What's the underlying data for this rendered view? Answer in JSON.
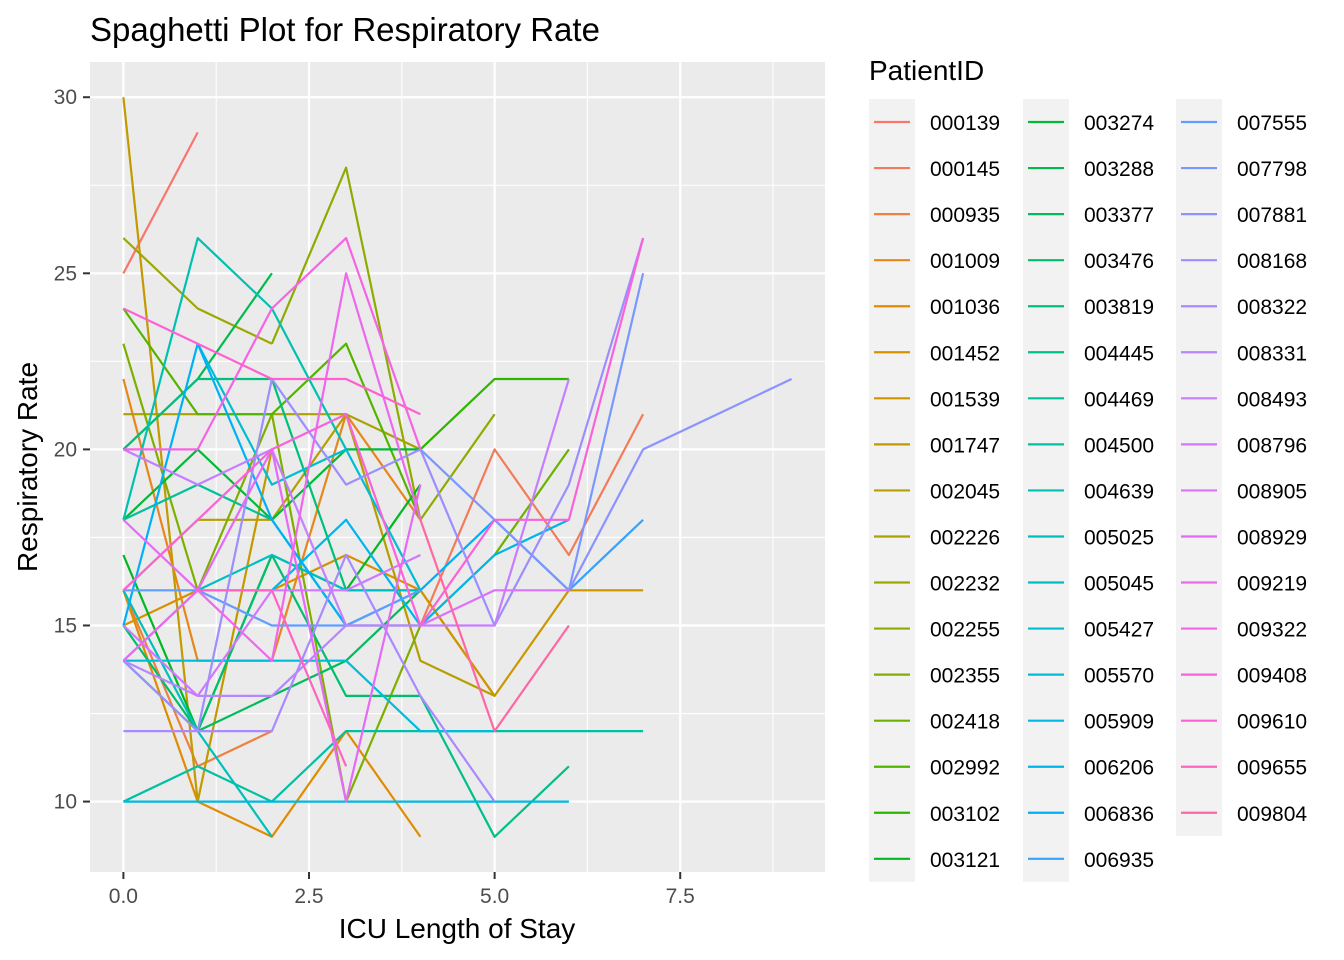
{
  "chart_data": {
    "type": "line",
    "title": "Spaghetti Plot for Respiratory Rate",
    "xlabel": "ICU Length of Stay",
    "ylabel": "Respiratory Rate",
    "xlim": [
      -0.45,
      9.45
    ],
    "ylim": [
      8.0,
      31.0
    ],
    "xticks": [
      0,
      2.5,
      5,
      7.5
    ],
    "xtick_labels": [
      "0.0",
      "2.5",
      "5.0",
      "7.5"
    ],
    "yticks": [
      10,
      15,
      20,
      25,
      30
    ],
    "ytick_labels": [
      "10",
      "15",
      "20",
      "25",
      "30"
    ],
    "grid": true,
    "background": "#ebebeb",
    "legend_title": "PatientID",
    "legend_position": "right",
    "series": [
      {
        "name": "000139",
        "color": "#F8766D",
        "x": [
          0,
          1
        ],
        "y": [
          25,
          29
        ]
      },
      {
        "name": "000145",
        "color": "#F37B59",
        "x": [
          4,
          5,
          6,
          7
        ],
        "y": [
          15,
          20,
          17,
          21
        ]
      },
      {
        "name": "000935",
        "color": "#ED8141",
        "x": [
          0,
          1,
          2
        ],
        "y": [
          16,
          11,
          12
        ]
      },
      {
        "name": "001009",
        "color": "#E7861B",
        "x": [
          0,
          1,
          2,
          3,
          4
        ],
        "y": [
          22,
          14,
          14,
          21,
          18
        ]
      },
      {
        "name": "001036",
        "color": "#DF8C00",
        "x": [
          0,
          1,
          2,
          3,
          4
        ],
        "y": [
          16,
          10,
          9,
          12,
          9
        ]
      },
      {
        "name": "001452",
        "color": "#D69100",
        "x": [
          0,
          1,
          2,
          3,
          4,
          5
        ],
        "y": [
          15,
          16,
          16,
          17,
          16,
          13
        ]
      },
      {
        "name": "001539",
        "color": "#CC9600",
        "x": [
          4,
          5,
          6,
          7
        ],
        "y": [
          16,
          13,
          16,
          16
        ]
      },
      {
        "name": "001747",
        "color": "#C29A00",
        "x": [
          0,
          1,
          2
        ],
        "y": [
          30,
          10,
          20
        ]
      },
      {
        "name": "002045",
        "color": "#B69E00",
        "x": [
          0,
          1,
          2,
          3,
          4,
          5
        ],
        "y": [
          16,
          18,
          18,
          21,
          14,
          13
        ]
      },
      {
        "name": "002226",
        "color": "#AAA200",
        "x": [
          0,
          1,
          2,
          3,
          4
        ],
        "y": [
          21,
          21,
          21,
          21,
          20
        ]
      },
      {
        "name": "002232",
        "color": "#9EA700",
        "x": [
          0,
          1,
          2
        ],
        "y": [
          26,
          24,
          23
        ]
      },
      {
        "name": "002255",
        "color": "#8FAA00",
        "x": [
          2,
          3,
          4,
          5
        ],
        "y": [
          23,
          28,
          18,
          21
        ]
      },
      {
        "name": "002355",
        "color": "#7FAE00",
        "x": [
          0,
          1,
          2,
          3,
          4
        ],
        "y": [
          23,
          16,
          21,
          10,
          15
        ]
      },
      {
        "name": "002418",
        "color": "#6BB100",
        "x": [
          4,
          5,
          6
        ],
        "y": [
          15,
          17,
          20
        ]
      },
      {
        "name": "002992",
        "color": "#53B400",
        "x": [
          0,
          1,
          2,
          3,
          4
        ],
        "y": [
          24,
          21,
          21,
          23,
          18
        ]
      },
      {
        "name": "003102",
        "color": "#2DB600",
        "x": [
          4,
          5,
          6
        ],
        "y": [
          20,
          22,
          22
        ]
      },
      {
        "name": "003121",
        "color": "#00B81F",
        "x": [
          0,
          1,
          2,
          3,
          4
        ],
        "y": [
          17,
          12,
          17,
          16,
          19
        ]
      },
      {
        "name": "003274",
        "color": "#00BA38",
        "x": [
          0,
          1,
          2,
          3,
          4
        ],
        "y": [
          18,
          20,
          18,
          20,
          20
        ]
      },
      {
        "name": "003288",
        "color": "#00BB4B",
        "x": [
          0,
          1,
          2
        ],
        "y": [
          20,
          22,
          25
        ]
      },
      {
        "name": "003377",
        "color": "#00BC5C",
        "x": [
          0,
          1,
          2,
          3,
          4
        ],
        "y": [
          14,
          12,
          13,
          14,
          16
        ]
      },
      {
        "name": "003476",
        "color": "#00BE6C",
        "x": [
          0,
          1,
          2,
          3,
          4
        ],
        "y": [
          15,
          12,
          17,
          13,
          13
        ]
      },
      {
        "name": "003819",
        "color": "#00BF7B",
        "x": [
          0,
          1,
          2,
          3,
          4
        ],
        "y": [
          20,
          22,
          22,
          16,
          16
        ]
      },
      {
        "name": "004445",
        "color": "#00BF89",
        "x": [
          4,
          5,
          6
        ],
        "y": [
          13,
          9,
          11
        ]
      },
      {
        "name": "004469",
        "color": "#00C097",
        "x": [
          0,
          1,
          2,
          3,
          4
        ],
        "y": [
          18,
          19,
          18,
          15,
          15
        ]
      },
      {
        "name": "004500",
        "color": "#00C0A3",
        "x": [
          0,
          1,
          2,
          3,
          4,
          5,
          6,
          7
        ],
        "y": [
          10,
          11,
          10,
          12,
          12,
          12,
          12,
          12
        ]
      },
      {
        "name": "004639",
        "color": "#00C1AF",
        "x": [
          0,
          1,
          2,
          3
        ],
        "y": [
          18,
          26,
          24,
          20
        ]
      },
      {
        "name": "005025",
        "color": "#00C0BB",
        "x": [
          0,
          1,
          2
        ],
        "y": [
          16,
          12,
          9
        ]
      },
      {
        "name": "005045",
        "color": "#00BFC4",
        "x": [
          0,
          1,
          2,
          3,
          4
        ],
        "y": [
          14,
          16,
          17,
          16,
          16
        ]
      },
      {
        "name": "005427",
        "color": "#00BDD0",
        "x": [
          1,
          2,
          3,
          4
        ],
        "y": [
          23,
          19,
          20,
          16
        ]
      },
      {
        "name": "005570",
        "color": "#00BBDA",
        "x": [
          0,
          1,
          2,
          3,
          4,
          5
        ],
        "y": [
          14,
          14,
          14,
          14,
          12,
          12
        ]
      },
      {
        "name": "005909",
        "color": "#00B8E3",
        "x": [
          0,
          1,
          2,
          3,
          4,
          5,
          6
        ],
        "y": [
          10,
          10,
          10,
          10,
          10,
          10,
          10
        ]
      },
      {
        "name": "006206",
        "color": "#00B4EC",
        "x": [
          2,
          3,
          4,
          5,
          6
        ],
        "y": [
          16,
          18,
          15,
          17,
          18
        ]
      },
      {
        "name": "006836",
        "color": "#00B0F6",
        "x": [
          0,
          1,
          2,
          3,
          4,
          5
        ],
        "y": [
          15,
          23,
          18,
          15,
          16,
          18
        ]
      },
      {
        "name": "006935",
        "color": "#35A2FF",
        "x": [
          5,
          6,
          7
        ],
        "y": [
          18,
          16,
          18
        ]
      },
      {
        "name": "007555",
        "color": "#619CFF",
        "x": [
          0,
          1,
          2,
          3,
          4
        ],
        "y": [
          16,
          16,
          15,
          15,
          16
        ]
      },
      {
        "name": "007798",
        "color": "#7997FF",
        "x": [
          4,
          5,
          6,
          7
        ],
        "y": [
          20,
          18,
          16,
          25
        ]
      },
      {
        "name": "007881",
        "color": "#8B93FF",
        "x": [
          6,
          7,
          8,
          9
        ],
        "y": [
          16,
          20,
          21,
          22
        ]
      },
      {
        "name": "008168",
        "color": "#9B8EFF",
        "x": [
          0,
          1,
          2,
          3,
          4,
          5,
          6,
          7
        ],
        "y": [
          14,
          12,
          22,
          19,
          20,
          15,
          19,
          26
        ]
      },
      {
        "name": "008322",
        "color": "#AA89FF",
        "x": [
          0,
          1,
          2,
          3,
          4,
          5
        ],
        "y": [
          12,
          12,
          12,
          17,
          13,
          10
        ]
      },
      {
        "name": "008331",
        "color": "#B785FF",
        "x": [
          0,
          1,
          2,
          3
        ],
        "y": [
          14,
          13,
          13,
          15
        ]
      },
      {
        "name": "008493",
        "color": "#C57EFF",
        "x": [
          0,
          1,
          2,
          3,
          4,
          5,
          6
        ],
        "y": [
          20,
          19,
          20,
          15,
          15,
          15,
          22
        ]
      },
      {
        "name": "008796",
        "color": "#D078FF",
        "x": [
          0,
          1,
          2,
          3,
          4
        ],
        "y": [
          15,
          13,
          16,
          16,
          17
        ]
      },
      {
        "name": "008905",
        "color": "#DB72FB",
        "x": [
          4,
          5,
          6
        ],
        "y": [
          15,
          16,
          16
        ]
      },
      {
        "name": "008929",
        "color": "#E56AF6",
        "x": [
          0,
          1,
          2,
          3,
          4
        ],
        "y": [
          18,
          16,
          20,
          10,
          19
        ]
      },
      {
        "name": "009219",
        "color": "#ED68ED",
        "x": [
          0,
          1,
          2,
          3,
          4
        ],
        "y": [
          14,
          16,
          14,
          25,
          18
        ]
      },
      {
        "name": "009322",
        "color": "#F564E3",
        "x": [
          0,
          1,
          2,
          3,
          4
        ],
        "y": [
          20,
          20,
          24,
          26,
          20
        ]
      },
      {
        "name": "009408",
        "color": "#FA62D8",
        "x": [
          0,
          1,
          2,
          3,
          4,
          5,
          6,
          7
        ],
        "y": [
          16,
          18,
          20,
          21,
          15,
          18,
          18,
          26
        ]
      },
      {
        "name": "009610",
        "color": "#FD61D1",
        "x": [
          0,
          1,
          2,
          3,
          4
        ],
        "y": [
          24,
          23,
          22,
          22,
          21
        ]
      },
      {
        "name": "009655",
        "color": "#FF63C1",
        "x": [
          1,
          2,
          3
        ],
        "y": [
          16,
          16,
          11
        ]
      },
      {
        "name": "009804",
        "color": "#FF67A4",
        "x": [
          4,
          5,
          6
        ],
        "y": [
          18,
          12,
          15
        ]
      }
    ]
  }
}
